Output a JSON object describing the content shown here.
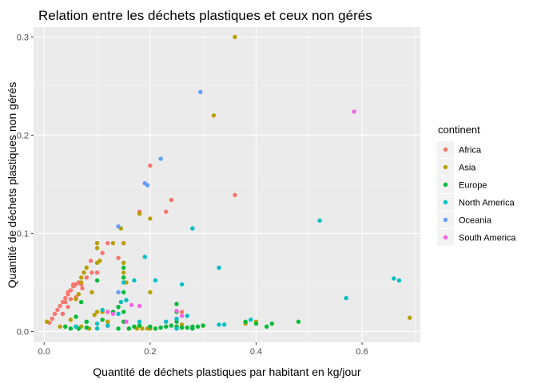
{
  "chart_data": {
    "type": "scatter",
    "title": "Relation entre les déchets plastiques et ceux non gérés",
    "xlabel": "Quantité de déchets plastiques par habitant en kg/jour",
    "ylabel": "Quantité de déchets plastiques non gérés",
    "xlim": [
      -0.02,
      0.71
    ],
    "ylim": [
      -0.011,
      0.31
    ],
    "x_ticks": [
      0.0,
      0.2,
      0.4,
      0.6
    ],
    "x_tick_labels": [
      "0.0",
      "0.2",
      "0.4",
      "0.6"
    ],
    "y_ticks": [
      0.0,
      0.1,
      0.2,
      0.3
    ],
    "y_tick_labels": [
      "0.0",
      "0.1",
      "0.2",
      "0.3"
    ],
    "grid": true,
    "legend": {
      "title": "continent",
      "position": "right"
    },
    "series": [
      {
        "name": "Africa",
        "color": "#F8766D",
        "points": [
          [
            0.01,
            0.009
          ],
          [
            0.015,
            0.013
          ],
          [
            0.02,
            0.018
          ],
          [
            0.025,
            0.022
          ],
          [
            0.03,
            0.026
          ],
          [
            0.035,
            0.03
          ],
          [
            0.04,
            0.034
          ],
          [
            0.045,
            0.038
          ],
          [
            0.05,
            0.042
          ],
          [
            0.055,
            0.046
          ],
          [
            0.06,
            0.048
          ],
          [
            0.065,
            0.05
          ],
          [
            0.07,
            0.048
          ],
          [
            0.072,
            0.044
          ],
          [
            0.08,
            0.055
          ],
          [
            0.088,
            0.072
          ],
          [
            0.06,
            0.035
          ],
          [
            0.05,
            0.033
          ],
          [
            0.045,
            0.025
          ],
          [
            0.035,
            0.018
          ],
          [
            0.1,
            0.06
          ],
          [
            0.11,
            0.08
          ],
          [
            0.12,
            0.09
          ],
          [
            0.09,
            0.06
          ],
          [
            0.14,
            0.075
          ],
          [
            0.15,
            0.09
          ],
          [
            0.18,
            0.122
          ],
          [
            0.2,
            0.169
          ],
          [
            0.23,
            0.122
          ],
          [
            0.24,
            0.134
          ],
          [
            0.36,
            0.139
          ],
          [
            0.26,
            0.02
          ],
          [
            0.045,
            0.04
          ],
          [
            0.055,
            0.048
          ],
          [
            0.04,
            0.03
          ]
        ]
      },
      {
        "name": "Asia",
        "color": "#B79F00",
        "points": [
          [
            0.005,
            0.01
          ],
          [
            0.03,
            0.005
          ],
          [
            0.05,
            0.012
          ],
          [
            0.06,
            0.033
          ],
          [
            0.065,
            0.038
          ],
          [
            0.07,
            0.05
          ],
          [
            0.07,
            0.055
          ],
          [
            0.075,
            0.06
          ],
          [
            0.08,
            0.065
          ],
          [
            0.09,
            0.04
          ],
          [
            0.1,
            0.085
          ],
          [
            0.1,
            0.09
          ],
          [
            0.1,
            0.07
          ],
          [
            0.105,
            0.072
          ],
          [
            0.11,
            0.02
          ],
          [
            0.12,
            0.02
          ],
          [
            0.12,
            0.01
          ],
          [
            0.13,
            0.09
          ],
          [
            0.145,
            0.105
          ],
          [
            0.15,
            0.09
          ],
          [
            0.15,
            0.07
          ],
          [
            0.15,
            0.06
          ],
          [
            0.155,
            0.05
          ],
          [
            0.16,
            0.003
          ],
          [
            0.175,
            0.003
          ],
          [
            0.185,
            0.003
          ],
          [
            0.195,
            0.003
          ],
          [
            0.18,
            0.12
          ],
          [
            0.2,
            0.115
          ],
          [
            0.2,
            0.04
          ],
          [
            0.2,
            0.003
          ],
          [
            0.25,
            0.005
          ],
          [
            0.26,
            0.007
          ],
          [
            0.3,
            0.006
          ],
          [
            0.32,
            0.22
          ],
          [
            0.36,
            0.3
          ],
          [
            0.38,
            0.008
          ],
          [
            0.4,
            0.01
          ],
          [
            0.69,
            0.014
          ],
          [
            0.1,
            0.02
          ],
          [
            0.095,
            0.017
          ],
          [
            0.085,
            0.003
          ],
          [
            0.07,
            0.005
          ],
          [
            0.04,
            0.005
          ]
        ]
      },
      {
        "name": "Europe",
        "color": "#00BA38",
        "points": [
          [
            0.04,
            0.005
          ],
          [
            0.05,
            0.003
          ],
          [
            0.06,
            0.005
          ],
          [
            0.07,
            0.03
          ],
          [
            0.08,
            0.004
          ],
          [
            0.1,
            0.052
          ],
          [
            0.11,
            0.012
          ],
          [
            0.12,
            0.006
          ],
          [
            0.13,
            0.02
          ],
          [
            0.14,
            0.025
          ],
          [
            0.14,
            0.003
          ],
          [
            0.15,
            0.02
          ],
          [
            0.15,
            0.065
          ],
          [
            0.15,
            0.055
          ],
          [
            0.15,
            0.04
          ],
          [
            0.15,
            0.01
          ],
          [
            0.16,
            0.003
          ],
          [
            0.17,
            0.005
          ],
          [
            0.18,
            0.006
          ],
          [
            0.2,
            0.005
          ],
          [
            0.21,
            0.003
          ],
          [
            0.22,
            0.004
          ],
          [
            0.23,
            0.005
          ],
          [
            0.24,
            0.006
          ],
          [
            0.25,
            0.005
          ],
          [
            0.25,
            0.028
          ],
          [
            0.26,
            0.004
          ],
          [
            0.27,
            0.004
          ],
          [
            0.28,
            0.003
          ],
          [
            0.28,
            0.005
          ],
          [
            0.29,
            0.005
          ],
          [
            0.3,
            0.006
          ],
          [
            0.38,
            0.01
          ],
          [
            0.4,
            0.008
          ],
          [
            0.43,
            0.008
          ],
          [
            0.48,
            0.01
          ],
          [
            0.06,
            0.015
          ],
          [
            0.065,
            0.003
          ],
          [
            0.08,
            0.01
          ],
          [
            0.25,
            0.01
          ],
          [
            0.25,
            0.02
          ],
          [
            0.42,
            0.005
          ]
        ]
      },
      {
        "name": "North America",
        "color": "#00BFC4",
        "points": [
          [
            0.1,
            0.003
          ],
          [
            0.11,
            0.022
          ],
          [
            0.12,
            0.006
          ],
          [
            0.14,
            0.018
          ],
          [
            0.145,
            0.03
          ],
          [
            0.155,
            0.032
          ],
          [
            0.15,
            0.05
          ],
          [
            0.17,
            0.052
          ],
          [
            0.18,
            0.01
          ],
          [
            0.19,
            0.076
          ],
          [
            0.21,
            0.052
          ],
          [
            0.23,
            0.01
          ],
          [
            0.25,
            0.013
          ],
          [
            0.25,
            0.003
          ],
          [
            0.26,
            0.048
          ],
          [
            0.28,
            0.105
          ],
          [
            0.33,
            0.065
          ],
          [
            0.33,
            0.007
          ],
          [
            0.34,
            0.007
          ],
          [
            0.39,
            0.012
          ],
          [
            0.52,
            0.113
          ],
          [
            0.57,
            0.034
          ],
          [
            0.66,
            0.054
          ],
          [
            0.67,
            0.052
          ],
          [
            0.06,
            0.005
          ],
          [
            0.1,
            0.008
          ],
          [
            0.27,
            0.016
          ]
        ]
      },
      {
        "name": "Oceania",
        "color": "#619CFF",
        "points": [
          [
            0.14,
            0.107
          ],
          [
            0.19,
            0.151
          ],
          [
            0.195,
            0.149
          ],
          [
            0.22,
            0.176
          ],
          [
            0.295,
            0.244
          ],
          [
            0.14,
            0.04
          ]
        ]
      },
      {
        "name": "South America",
        "color": "#F564E3",
        "points": [
          [
            0.13,
            0.018
          ],
          [
            0.155,
            0.01
          ],
          [
            0.165,
            0.027
          ],
          [
            0.18,
            0.026
          ],
          [
            0.25,
            0.021
          ],
          [
            0.26,
            0.016
          ],
          [
            0.585,
            0.224
          ],
          [
            0.12,
            0.02
          ]
        ]
      }
    ]
  }
}
